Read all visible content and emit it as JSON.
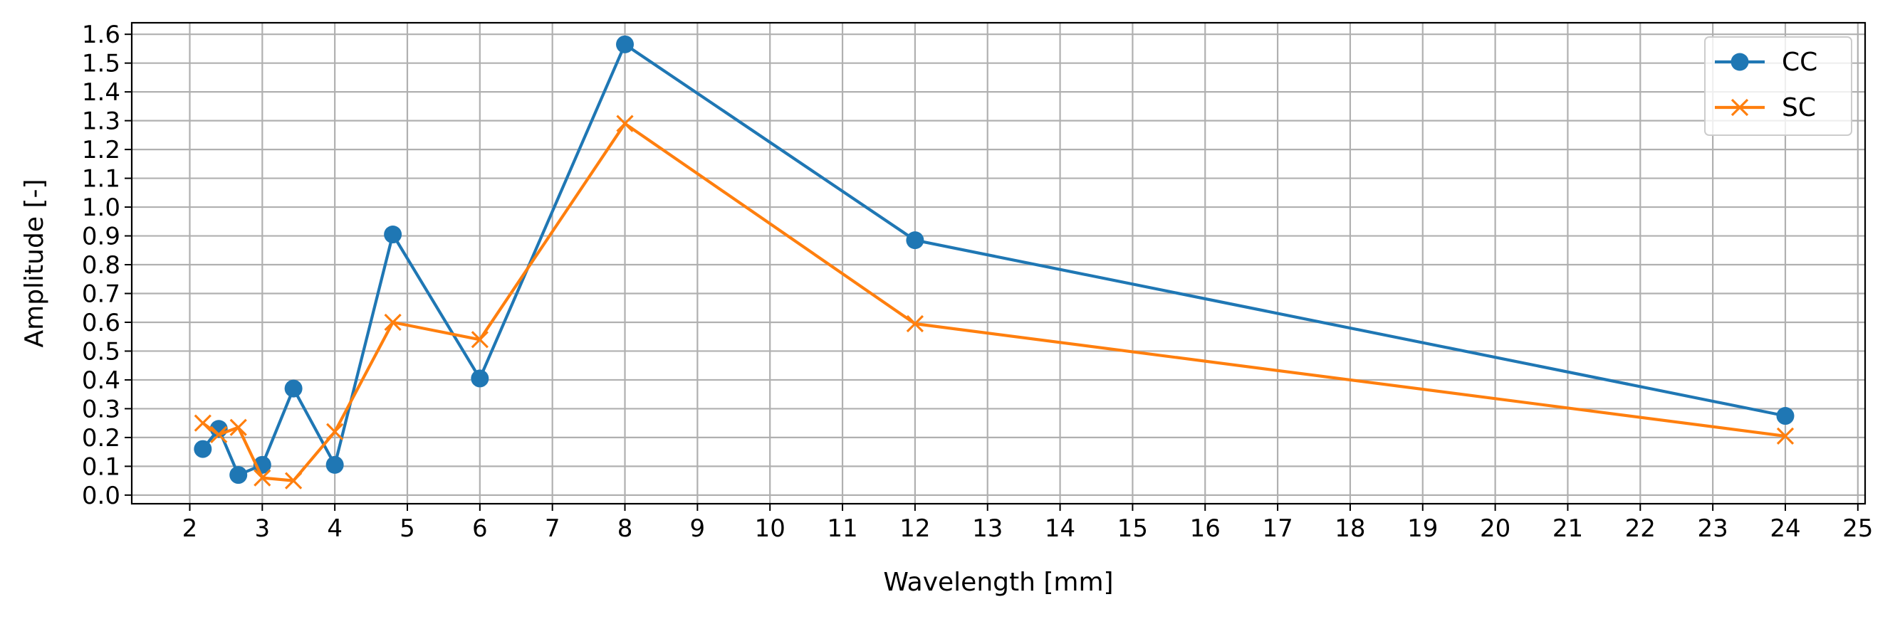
{
  "chart_data": {
    "type": "line",
    "xlabel": "Wavelength [mm]",
    "ylabel": "Amplitude [-]",
    "xlim": [
      1.2,
      25.1
    ],
    "ylim": [
      -0.03,
      1.64
    ],
    "xticks": [
      2,
      3,
      4,
      5,
      6,
      7,
      8,
      9,
      10,
      11,
      12,
      13,
      14,
      15,
      16,
      17,
      18,
      19,
      20,
      21,
      22,
      23,
      24,
      25
    ],
    "yticks": [
      0.0,
      0.1,
      0.2,
      0.3,
      0.4,
      0.5,
      0.6,
      0.7,
      0.8,
      0.9,
      1.0,
      1.1,
      1.2,
      1.3,
      1.4,
      1.5,
      1.6
    ],
    "ytick_labels": [
      "0.0",
      "0.1",
      "0.2",
      "0.3",
      "0.4",
      "0.5",
      "0.6",
      "0.7",
      "0.8",
      "0.9",
      "1.0",
      "1.1",
      "1.2",
      "1.3",
      "1.4",
      "1.5",
      "1.6"
    ],
    "grid": true,
    "legend_position": "top-right",
    "x": [
      2.18,
      2.4,
      2.67,
      3.0,
      3.43,
      4.0,
      4.8,
      6.0,
      8.0,
      12.0,
      24.0
    ],
    "series": [
      {
        "name": "CC",
        "color": "#1f77b4",
        "marker": "circle",
        "values": [
          0.16,
          0.23,
          0.07,
          0.105,
          0.37,
          0.105,
          0.905,
          0.405,
          1.565,
          0.885,
          0.275
        ]
      },
      {
        "name": "SC",
        "color": "#ff7f0e",
        "marker": "x",
        "values": [
          0.25,
          0.21,
          0.235,
          0.06,
          0.05,
          0.22,
          0.6,
          0.54,
          1.29,
          0.595,
          0.205
        ]
      }
    ]
  }
}
